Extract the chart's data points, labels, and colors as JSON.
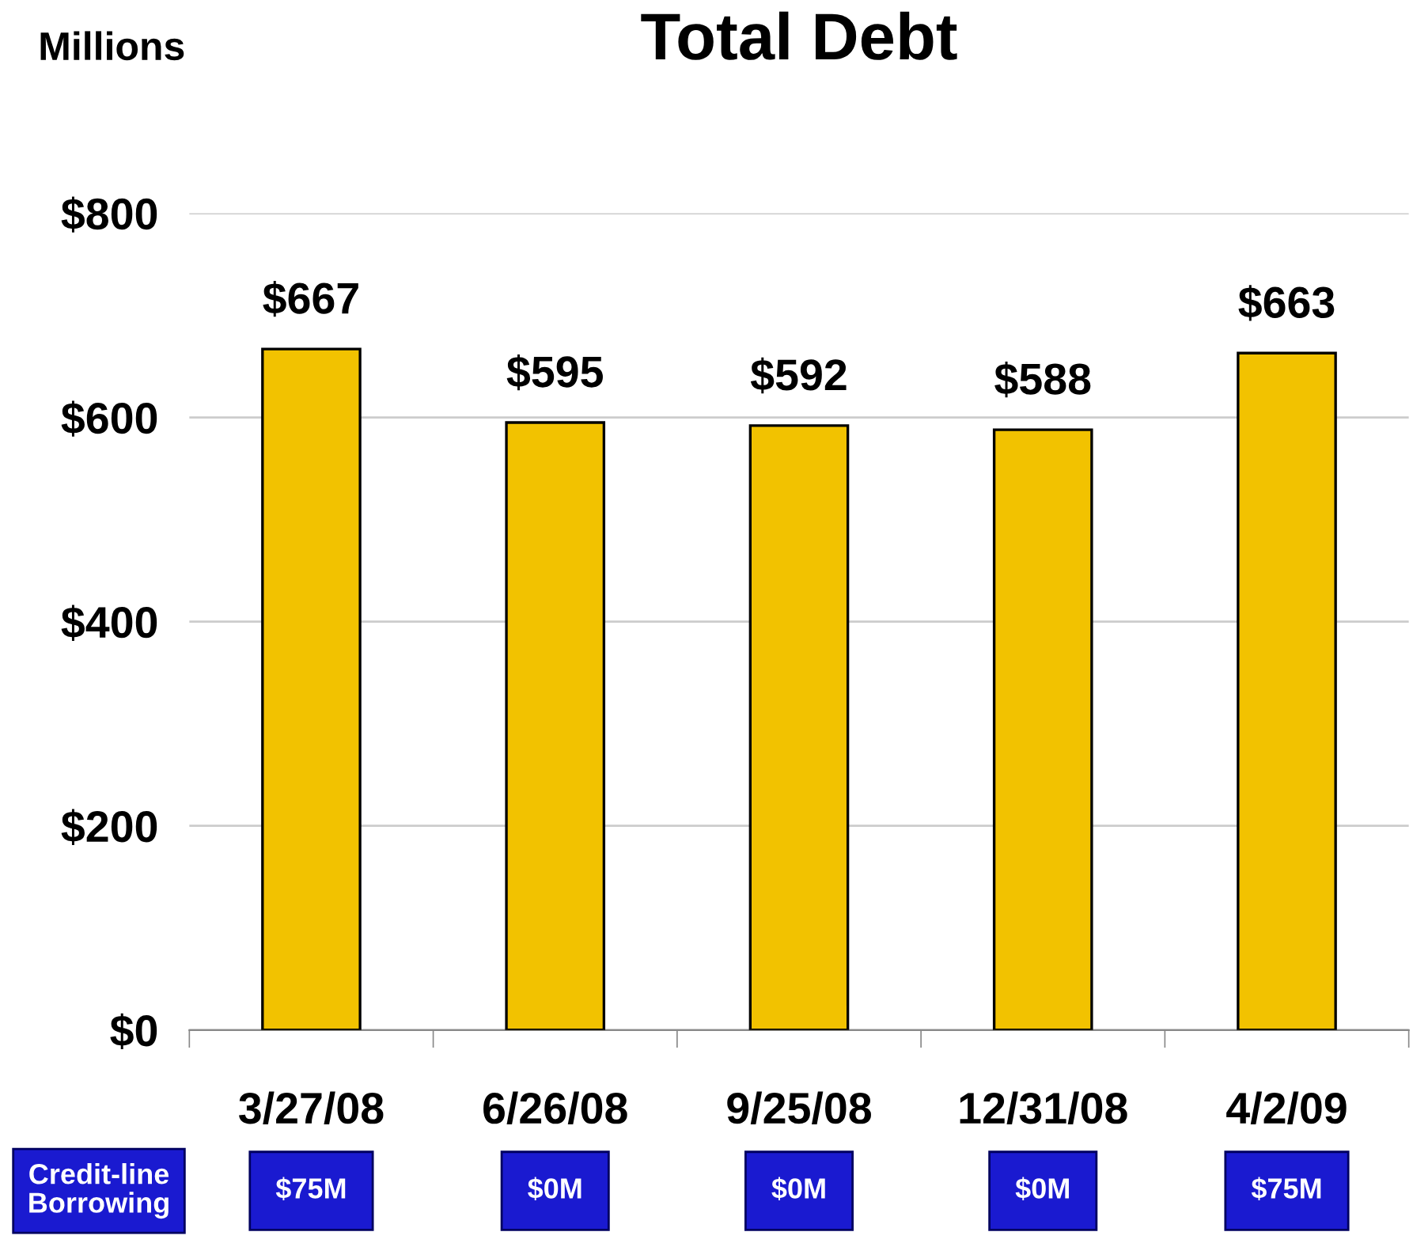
{
  "chart_data": {
    "type": "bar",
    "title": "Total Debt",
    "ylabel": "Millions",
    "categories": [
      "3/27/08",
      "6/26/08",
      "9/25/08",
      "12/31/08",
      "4/2/09"
    ],
    "values": [
      667,
      595,
      592,
      588,
      663
    ],
    "value_labels": [
      "$667",
      "$595",
      "$592",
      "$588",
      "$663"
    ],
    "color": "#f2c200",
    "ylim": [
      0,
      800
    ],
    "yticks": [
      {
        "value": 0,
        "label": "$0"
      },
      {
        "value": 200,
        "label": "$200"
      },
      {
        "value": 400,
        "label": "$400"
      },
      {
        "value": 600,
        "label": "$600"
      },
      {
        "value": 800,
        "label": "$800"
      }
    ],
    "grid": "y",
    "annotations": [
      "Credit-line Borrowing",
      "$75M",
      "$0M",
      "$0M",
      "$0M",
      "$75M"
    ]
  }
}
